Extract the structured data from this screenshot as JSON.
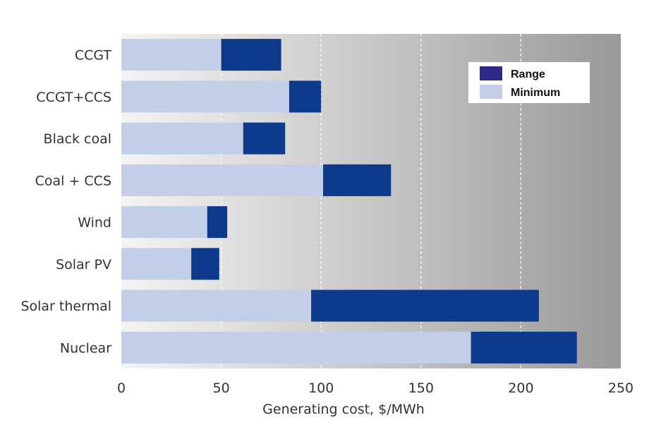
{
  "chart_data": {
    "type": "bar",
    "orientation": "horizontal",
    "stacked": true,
    "categories": [
      "CCGT",
      "CCGT+CCS",
      "Black coal",
      "Coal + CCS",
      "Wind",
      "Solar PV",
      "Solar thermal",
      "Nuclear"
    ],
    "series": [
      {
        "name": "Minimum",
        "values": [
          50,
          84,
          61,
          101,
          43,
          35,
          95,
          175
        ]
      },
      {
        "name": "Range",
        "values": [
          30,
          16,
          21,
          34,
          10,
          14,
          114,
          53
        ]
      }
    ],
    "xlabel": "Generating cost, $/MWh",
    "ylabel": "",
    "xlim": [
      0,
      250
    ],
    "xticks": [
      0,
      50,
      100,
      150,
      200,
      250
    ],
    "grid": true,
    "legend_position": "top-right",
    "colors": {
      "Minimum": "#c3cfe6",
      "Range": "#0d3a8a",
      "range_legend_swatch": "#2e2a8a",
      "background_light": "#f4f4f4",
      "background_dark": "#9a9a9a"
    }
  }
}
